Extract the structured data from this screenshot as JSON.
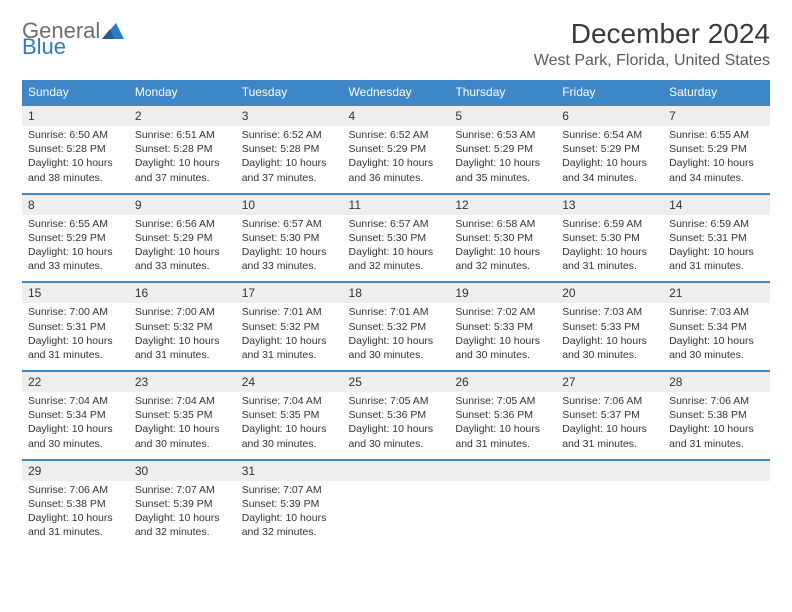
{
  "logo": {
    "text1": "General",
    "text2": "Blue"
  },
  "title": "December 2024",
  "subtitle": "West Park, Florida, United States",
  "colors": {
    "header_bg": "#3d87c7",
    "header_text": "#ffffff",
    "daynum_bg": "#eeeeee",
    "border": "#3d87c7",
    "logo_gray": "#6e6e6e",
    "logo_blue": "#2e7bc0"
  },
  "weekdays": [
    "Sunday",
    "Monday",
    "Tuesday",
    "Wednesday",
    "Thursday",
    "Friday",
    "Saturday"
  ],
  "weeks": [
    [
      {
        "n": "1",
        "sr": "6:50 AM",
        "ss": "5:28 PM",
        "dl": "10 hours and 38 minutes."
      },
      {
        "n": "2",
        "sr": "6:51 AM",
        "ss": "5:28 PM",
        "dl": "10 hours and 37 minutes."
      },
      {
        "n": "3",
        "sr": "6:52 AM",
        "ss": "5:28 PM",
        "dl": "10 hours and 37 minutes."
      },
      {
        "n": "4",
        "sr": "6:52 AM",
        "ss": "5:29 PM",
        "dl": "10 hours and 36 minutes."
      },
      {
        "n": "5",
        "sr": "6:53 AM",
        "ss": "5:29 PM",
        "dl": "10 hours and 35 minutes."
      },
      {
        "n": "6",
        "sr": "6:54 AM",
        "ss": "5:29 PM",
        "dl": "10 hours and 34 minutes."
      },
      {
        "n": "7",
        "sr": "6:55 AM",
        "ss": "5:29 PM",
        "dl": "10 hours and 34 minutes."
      }
    ],
    [
      {
        "n": "8",
        "sr": "6:55 AM",
        "ss": "5:29 PM",
        "dl": "10 hours and 33 minutes."
      },
      {
        "n": "9",
        "sr": "6:56 AM",
        "ss": "5:29 PM",
        "dl": "10 hours and 33 minutes."
      },
      {
        "n": "10",
        "sr": "6:57 AM",
        "ss": "5:30 PM",
        "dl": "10 hours and 33 minutes."
      },
      {
        "n": "11",
        "sr": "6:57 AM",
        "ss": "5:30 PM",
        "dl": "10 hours and 32 minutes."
      },
      {
        "n": "12",
        "sr": "6:58 AM",
        "ss": "5:30 PM",
        "dl": "10 hours and 32 minutes."
      },
      {
        "n": "13",
        "sr": "6:59 AM",
        "ss": "5:30 PM",
        "dl": "10 hours and 31 minutes."
      },
      {
        "n": "14",
        "sr": "6:59 AM",
        "ss": "5:31 PM",
        "dl": "10 hours and 31 minutes."
      }
    ],
    [
      {
        "n": "15",
        "sr": "7:00 AM",
        "ss": "5:31 PM",
        "dl": "10 hours and 31 minutes."
      },
      {
        "n": "16",
        "sr": "7:00 AM",
        "ss": "5:32 PM",
        "dl": "10 hours and 31 minutes."
      },
      {
        "n": "17",
        "sr": "7:01 AM",
        "ss": "5:32 PM",
        "dl": "10 hours and 31 minutes."
      },
      {
        "n": "18",
        "sr": "7:01 AM",
        "ss": "5:32 PM",
        "dl": "10 hours and 30 minutes."
      },
      {
        "n": "19",
        "sr": "7:02 AM",
        "ss": "5:33 PM",
        "dl": "10 hours and 30 minutes."
      },
      {
        "n": "20",
        "sr": "7:03 AM",
        "ss": "5:33 PM",
        "dl": "10 hours and 30 minutes."
      },
      {
        "n": "21",
        "sr": "7:03 AM",
        "ss": "5:34 PM",
        "dl": "10 hours and 30 minutes."
      }
    ],
    [
      {
        "n": "22",
        "sr": "7:04 AM",
        "ss": "5:34 PM",
        "dl": "10 hours and 30 minutes."
      },
      {
        "n": "23",
        "sr": "7:04 AM",
        "ss": "5:35 PM",
        "dl": "10 hours and 30 minutes."
      },
      {
        "n": "24",
        "sr": "7:04 AM",
        "ss": "5:35 PM",
        "dl": "10 hours and 30 minutes."
      },
      {
        "n": "25",
        "sr": "7:05 AM",
        "ss": "5:36 PM",
        "dl": "10 hours and 30 minutes."
      },
      {
        "n": "26",
        "sr": "7:05 AM",
        "ss": "5:36 PM",
        "dl": "10 hours and 31 minutes."
      },
      {
        "n": "27",
        "sr": "7:06 AM",
        "ss": "5:37 PM",
        "dl": "10 hours and 31 minutes."
      },
      {
        "n": "28",
        "sr": "7:06 AM",
        "ss": "5:38 PM",
        "dl": "10 hours and 31 minutes."
      }
    ],
    [
      {
        "n": "29",
        "sr": "7:06 AM",
        "ss": "5:38 PM",
        "dl": "10 hours and 31 minutes."
      },
      {
        "n": "30",
        "sr": "7:07 AM",
        "ss": "5:39 PM",
        "dl": "10 hours and 32 minutes."
      },
      {
        "n": "31",
        "sr": "7:07 AM",
        "ss": "5:39 PM",
        "dl": "10 hours and 32 minutes."
      },
      null,
      null,
      null,
      null
    ]
  ],
  "labels": {
    "sunrise": "Sunrise:",
    "sunset": "Sunset:",
    "daylight": "Daylight:"
  }
}
